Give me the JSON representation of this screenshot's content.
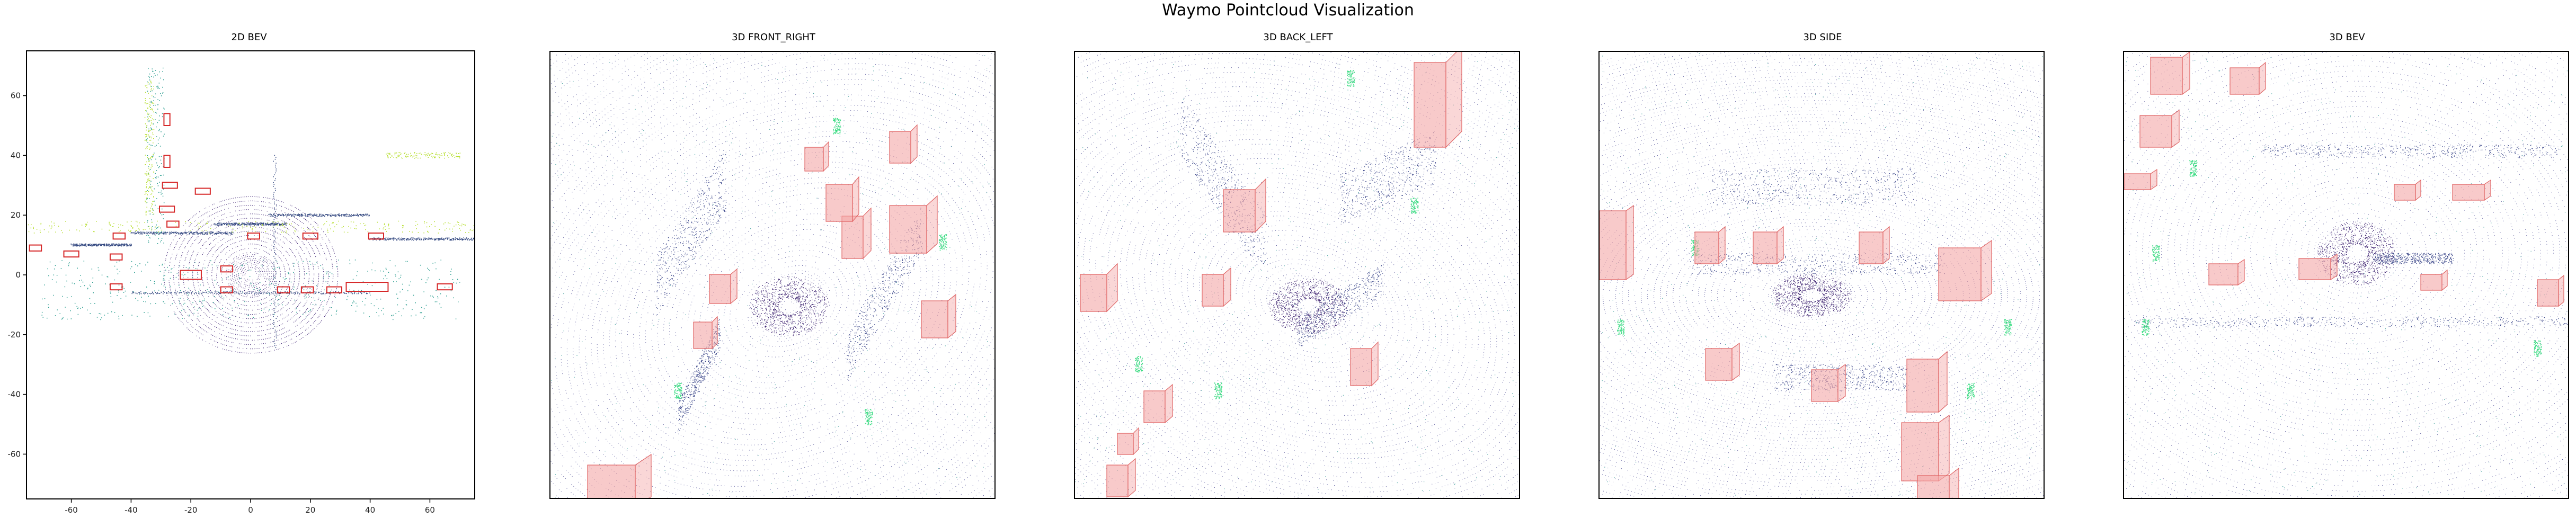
{
  "figure": {
    "title": "Waymo Pointcloud Visualization"
  },
  "chart_data": [
    {
      "type": "scatter",
      "title": "2D BEV",
      "xlim": [
        -75,
        75
      ],
      "ylim": [
        -75,
        75
      ],
      "xticks": [
        -60,
        -40,
        -20,
        0,
        20,
        40,
        60
      ],
      "yticks": [
        60,
        40,
        20,
        0,
        -20,
        -40,
        -60
      ],
      "box_color": "#d62728",
      "point_colormap": "viridis",
      "boxes": [
        {
          "x": -72,
          "y": 9,
          "l": 4,
          "w": 2
        },
        {
          "x": -60,
          "y": 7,
          "l": 5,
          "w": 2
        },
        {
          "x": -45,
          "y": 6,
          "l": 4,
          "w": 2
        },
        {
          "x": -44,
          "y": 13,
          "l": 4,
          "w": 2
        },
        {
          "x": -45,
          "y": -4,
          "l": 4,
          "w": 2
        },
        {
          "x": -28,
          "y": 52,
          "l": 2,
          "w": 4
        },
        {
          "x": -28,
          "y": 38,
          "l": 2,
          "w": 4
        },
        {
          "x": -27,
          "y": 30,
          "l": 5,
          "w": 2
        },
        {
          "x": -28,
          "y": 22,
          "l": 5,
          "w": 2
        },
        {
          "x": -16,
          "y": 28,
          "l": 5,
          "w": 2
        },
        {
          "x": -26,
          "y": 17,
          "l": 4,
          "w": 2
        },
        {
          "x": -20,
          "y": 0,
          "l": 7,
          "w": 3
        },
        {
          "x": -8,
          "y": 2,
          "l": 4,
          "w": 2
        },
        {
          "x": -8,
          "y": -5,
          "l": 4,
          "w": 2
        },
        {
          "x": 1,
          "y": 13,
          "l": 4,
          "w": 2
        },
        {
          "x": 11,
          "y": -5,
          "l": 4,
          "w": 2
        },
        {
          "x": 19,
          "y": -5,
          "l": 4,
          "w": 2
        },
        {
          "x": 20,
          "y": 13,
          "l": 5,
          "w": 2
        },
        {
          "x": 28,
          "y": -5,
          "l": 5,
          "w": 2
        },
        {
          "x": 42,
          "y": 13,
          "l": 5,
          "w": 2
        },
        {
          "x": 39,
          "y": -4,
          "l": 14,
          "w": 3
        },
        {
          "x": 65,
          "y": -4,
          "l": 5,
          "w": 2
        }
      ]
    },
    {
      "type": "scatter",
      "title": "3D FRONT_RIGHT",
      "view": "front_right",
      "box_color": "#f4a6a6",
      "point_colormap": "viridis"
    },
    {
      "type": "scatter",
      "title": "3D BACK_LEFT",
      "view": "back_left",
      "box_color": "#f4a6a6",
      "point_colormap": "viridis"
    },
    {
      "type": "scatter",
      "title": "3D SIDE",
      "view": "side",
      "box_color": "#f4a6a6",
      "point_colormap": "viridis"
    },
    {
      "type": "scatter",
      "title": "3D BEV",
      "view": "bev3d",
      "box_color": "#f4a6a6",
      "point_colormap": "viridis"
    }
  ]
}
